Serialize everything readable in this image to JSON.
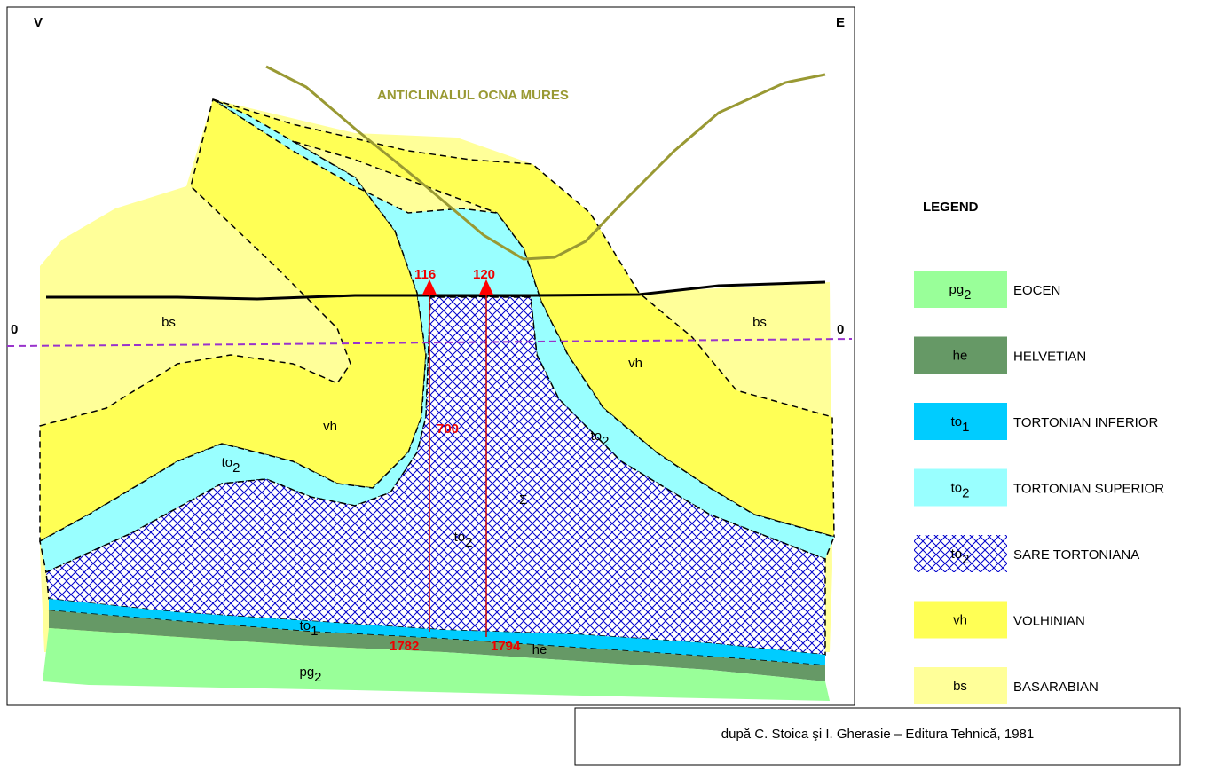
{
  "orientation": {
    "west": "V",
    "east": "E"
  },
  "title": "ANTICLINALUL OCNA MURES",
  "level_labels": [
    "0",
    "0"
  ],
  "wells": [
    {
      "label": "116",
      "depth": "1782"
    },
    {
      "label": "120",
      "depth": "1794"
    }
  ],
  "annotations": {
    "depth_mark": "700",
    "salt_symbol": "Σ"
  },
  "section_labels": [
    {
      "base": "bs",
      "sub": ""
    },
    {
      "base": "bs",
      "sub": ""
    },
    {
      "base": "vh",
      "sub": ""
    },
    {
      "base": "vh",
      "sub": ""
    },
    {
      "base": "to",
      "sub": "2"
    },
    {
      "base": "to",
      "sub": "2"
    },
    {
      "base": "to",
      "sub": "2"
    },
    {
      "base": "to",
      "sub": "1"
    },
    {
      "base": "he",
      "sub": ""
    },
    {
      "base": "pg",
      "sub": "2"
    }
  ],
  "legend": {
    "title": "LEGEND",
    "items": [
      {
        "base": "pg",
        "sub": "2",
        "label": "EOCEN"
      },
      {
        "base": "he",
        "sub": "",
        "label": "HELVETIAN"
      },
      {
        "base": "to",
        "sub": "1",
        "label": "TORTONIAN INFERIOR"
      },
      {
        "base": "to",
        "sub": "2",
        "label": "TORTONIAN SUPERIOR"
      },
      {
        "base": "to",
        "sub": "2",
        "label": "SARE TORTONIANA"
      },
      {
        "base": "vh",
        "sub": "",
        "label": "VOLHINIAN"
      },
      {
        "base": "bs",
        "sub": "",
        "label": "BASARABIAN"
      }
    ]
  },
  "source": "după C. Stoica şi I. Gherasie – Editura Tehnică, 1981"
}
